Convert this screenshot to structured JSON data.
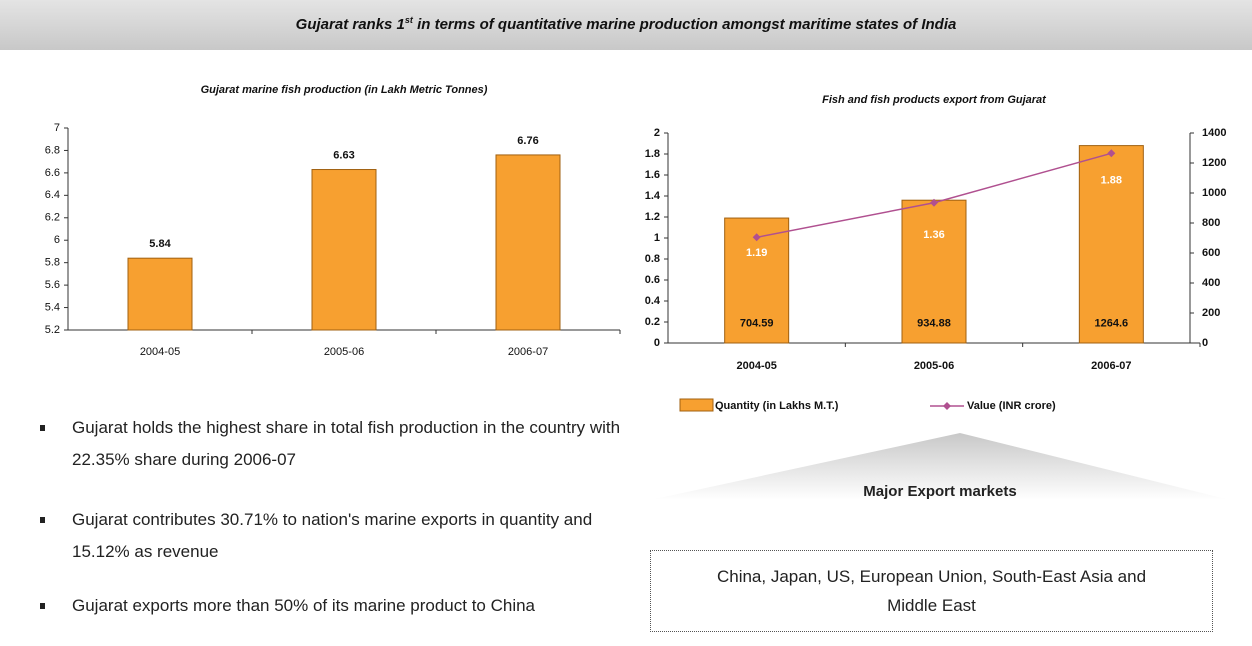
{
  "header": {
    "title": {
      "text_before": "Gujarat ranks 1",
      "superscript": "st",
      "text_after": " in terms of quantitative marine production amongst maritime states of India"
    }
  },
  "chart_data": [
    {
      "type": "bar",
      "title": "Gujarat marine fish production (in Lakh Metric Tonnes)",
      "categories": [
        "2004-05",
        "2005-06",
        "2006-07"
      ],
      "values": [
        5.84,
        6.63,
        6.76
      ],
      "color": "#f7a030",
      "ylim": [
        5.2,
        7
      ],
      "yticks": [
        5.2,
        5.4,
        5.6,
        5.8,
        6,
        6.2,
        6.4,
        6.6,
        6.8,
        7
      ]
    },
    {
      "type": "bar_line",
      "title": "Fish and fish products export from Gujarat",
      "categories": [
        "2004-05",
        "2005-06",
        "2006-07"
      ],
      "series": [
        {
          "name": "Quantity (in Lakhs M.T.)",
          "type": "bar",
          "color": "#f7a030",
          "values": [
            1.19,
            1.36,
            1.88
          ]
        },
        {
          "name": "Value (INR crore)",
          "type": "line",
          "color": "#b05090",
          "axis": "y2",
          "values": [
            704.59,
            934.88,
            1264.6
          ]
        }
      ],
      "ylim": [
        0,
        2
      ],
      "yticks": [
        0,
        0.2,
        0.4,
        0.6,
        0.8,
        1,
        1.2,
        1.4,
        1.6,
        1.8,
        2
      ],
      "y2lim": [
        0,
        1400
      ],
      "y2ticks": [
        0,
        200,
        400,
        600,
        800,
        1000,
        1200,
        1400
      ]
    }
  ],
  "bullets": [
    "Gujarat holds the highest share in total fish production in the country with 22.35% share during 2006-07",
    "Gujarat contributes 30.71% to nation's marine exports in quantity and 15.12% as revenue",
    "Gujarat exports more than 50% of its marine product to China"
  ],
  "export_markets": {
    "title": "Major Export markets",
    "text": "China, Japan, US, European Union, South-East Asia and Middle East"
  }
}
